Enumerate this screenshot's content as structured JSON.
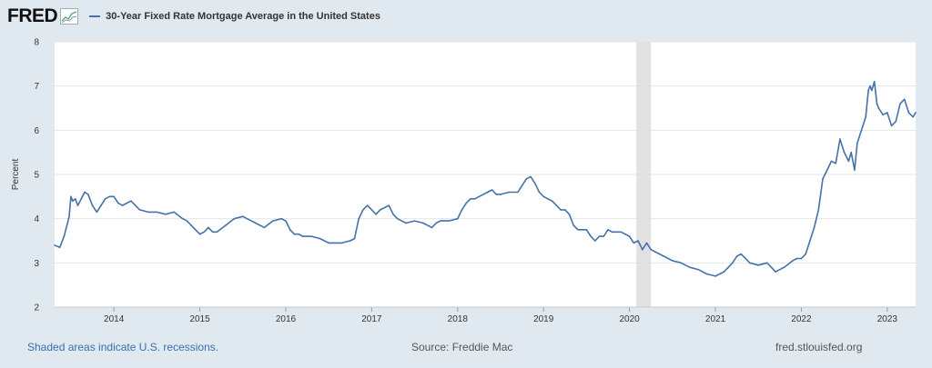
{
  "header": {
    "logo": "FRED",
    "logo_icon": "line-graph-icon",
    "legend_label": "30-Year Fixed Rate Mortgage Average in the United States"
  },
  "footer": {
    "recession_note": "Shaded areas indicate U.S. recessions.",
    "source": "Source: Freddie Mac",
    "site": "fred.stlouisfed.org"
  },
  "colors": {
    "series": "#4572a7",
    "plot_background": "#ffffff",
    "page_background": "#e1e9f0",
    "recession": "#e1e1e1",
    "link": "#3a6fb0"
  },
  "chart_data": {
    "type": "line",
    "title": "30-Year Fixed Rate Mortgage Average in the United States",
    "xlabel": "",
    "ylabel": "Percent",
    "ylim": [
      2,
      8
    ],
    "xlim": [
      2013.31,
      2023.33
    ],
    "grid": true,
    "yticks": [
      2,
      3,
      4,
      5,
      6,
      7,
      8
    ],
    "xticks": [
      "2014",
      "2015",
      "2016",
      "2017",
      "2018",
      "2019",
      "2020",
      "2021",
      "2022",
      "2023"
    ],
    "recessions": [
      {
        "start": 2020.08,
        "end": 2020.25
      }
    ],
    "series": [
      {
        "name": "30-Year Fixed Rate Mortgage Average in the United States",
        "color": "#4572a7",
        "x": [
          2013.31,
          2013.37,
          2013.42,
          2013.46,
          2013.48,
          2013.5,
          2013.52,
          2013.55,
          2013.58,
          2013.62,
          2013.66,
          2013.7,
          2013.75,
          2013.8,
          2013.85,
          2013.9,
          2013.95,
          2014.0,
          2014.05,
          2014.1,
          2014.15,
          2014.2,
          2014.25,
          2014.3,
          2014.4,
          2014.5,
          2014.6,
          2014.7,
          2014.8,
          2014.85,
          2014.9,
          2014.95,
          2015.0,
          2015.05,
          2015.1,
          2015.15,
          2015.2,
          2015.3,
          2015.4,
          2015.5,
          2015.55,
          2015.65,
          2015.75,
          2015.85,
          2015.95,
          2016.0,
          2016.05,
          2016.1,
          2016.15,
          2016.2,
          2016.3,
          2016.4,
          2016.5,
          2016.55,
          2016.65,
          2016.75,
          2016.8,
          2016.85,
          2016.9,
          2016.95,
          2017.0,
          2017.05,
          2017.1,
          2017.2,
          2017.25,
          2017.3,
          2017.35,
          2017.4,
          2017.5,
          2017.6,
          2017.7,
          2017.75,
          2017.8,
          2017.9,
          2018.0,
          2018.05,
          2018.1,
          2018.15,
          2018.2,
          2018.3,
          2018.35,
          2018.4,
          2018.45,
          2018.5,
          2018.6,
          2018.7,
          2018.75,
          2018.8,
          2018.85,
          2018.9,
          2018.95,
          2019.0,
          2019.05,
          2019.1,
          2019.15,
          2019.2,
          2019.25,
          2019.3,
          2019.35,
          2019.4,
          2019.45,
          2019.5,
          2019.55,
          2019.6,
          2019.65,
          2019.7,
          2019.75,
          2019.8,
          2019.85,
          2019.9,
          2019.95,
          2020.0,
          2020.05,
          2020.1,
          2020.15,
          2020.2,
          2020.25,
          2020.3,
          2020.4,
          2020.5,
          2020.6,
          2020.7,
          2020.8,
          2020.9,
          2021.0,
          2021.05,
          2021.1,
          2021.15,
          2021.2,
          2021.25,
          2021.3,
          2021.4,
          2021.5,
          2021.6,
          2021.65,
          2021.7,
          2021.8,
          2021.9,
          2021.95,
          2022.0,
          2022.05,
          2022.1,
          2022.15,
          2022.2,
          2022.25,
          2022.3,
          2022.35,
          2022.4,
          2022.45,
          2022.5,
          2022.55,
          2022.58,
          2022.62,
          2022.65,
          2022.7,
          2022.75,
          2022.78,
          2022.8,
          2022.82,
          2022.85,
          2022.88,
          2022.9,
          2022.95,
          2023.0,
          2023.05,
          2023.1,
          2023.15,
          2023.2,
          2023.25,
          2023.3,
          2023.33
        ],
        "values": [
          3.4,
          3.35,
          3.6,
          3.9,
          4.05,
          4.5,
          4.4,
          4.45,
          4.3,
          4.45,
          4.6,
          4.55,
          4.3,
          4.15,
          4.3,
          4.45,
          4.5,
          4.5,
          4.35,
          4.3,
          4.35,
          4.4,
          4.3,
          4.2,
          4.15,
          4.15,
          4.1,
          4.15,
          4.0,
          3.95,
          3.85,
          3.75,
          3.65,
          3.7,
          3.8,
          3.7,
          3.7,
          3.85,
          4.0,
          4.05,
          4.0,
          3.9,
          3.8,
          3.95,
          4.0,
          3.95,
          3.75,
          3.65,
          3.65,
          3.6,
          3.6,
          3.55,
          3.45,
          3.45,
          3.45,
          3.5,
          3.55,
          4.0,
          4.2,
          4.3,
          4.2,
          4.1,
          4.2,
          4.3,
          4.1,
          4.0,
          3.95,
          3.9,
          3.95,
          3.9,
          3.8,
          3.9,
          3.95,
          3.95,
          4.0,
          4.2,
          4.35,
          4.45,
          4.45,
          4.55,
          4.6,
          4.65,
          4.55,
          4.55,
          4.6,
          4.6,
          4.75,
          4.9,
          4.95,
          4.8,
          4.6,
          4.5,
          4.45,
          4.4,
          4.3,
          4.2,
          4.2,
          4.1,
          3.85,
          3.75,
          3.75,
          3.75,
          3.6,
          3.5,
          3.6,
          3.6,
          3.75,
          3.7,
          3.7,
          3.7,
          3.65,
          3.6,
          3.45,
          3.5,
          3.3,
          3.45,
          3.3,
          3.25,
          3.15,
          3.05,
          3.0,
          2.9,
          2.85,
          2.75,
          2.7,
          2.75,
          2.8,
          2.9,
          3.0,
          3.15,
          3.2,
          3.0,
          2.95,
          3.0,
          2.9,
          2.8,
          2.9,
          3.05,
          3.1,
          3.1,
          3.2,
          3.5,
          3.8,
          4.2,
          4.9,
          5.1,
          5.3,
          5.25,
          5.8,
          5.5,
          5.3,
          5.5,
          5.1,
          5.7,
          6.0,
          6.3,
          6.9,
          7.0,
          6.9,
          7.1,
          6.6,
          6.5,
          6.35,
          6.4,
          6.1,
          6.2,
          6.6,
          6.7,
          6.4,
          6.3,
          6.4
        ]
      }
    ]
  }
}
